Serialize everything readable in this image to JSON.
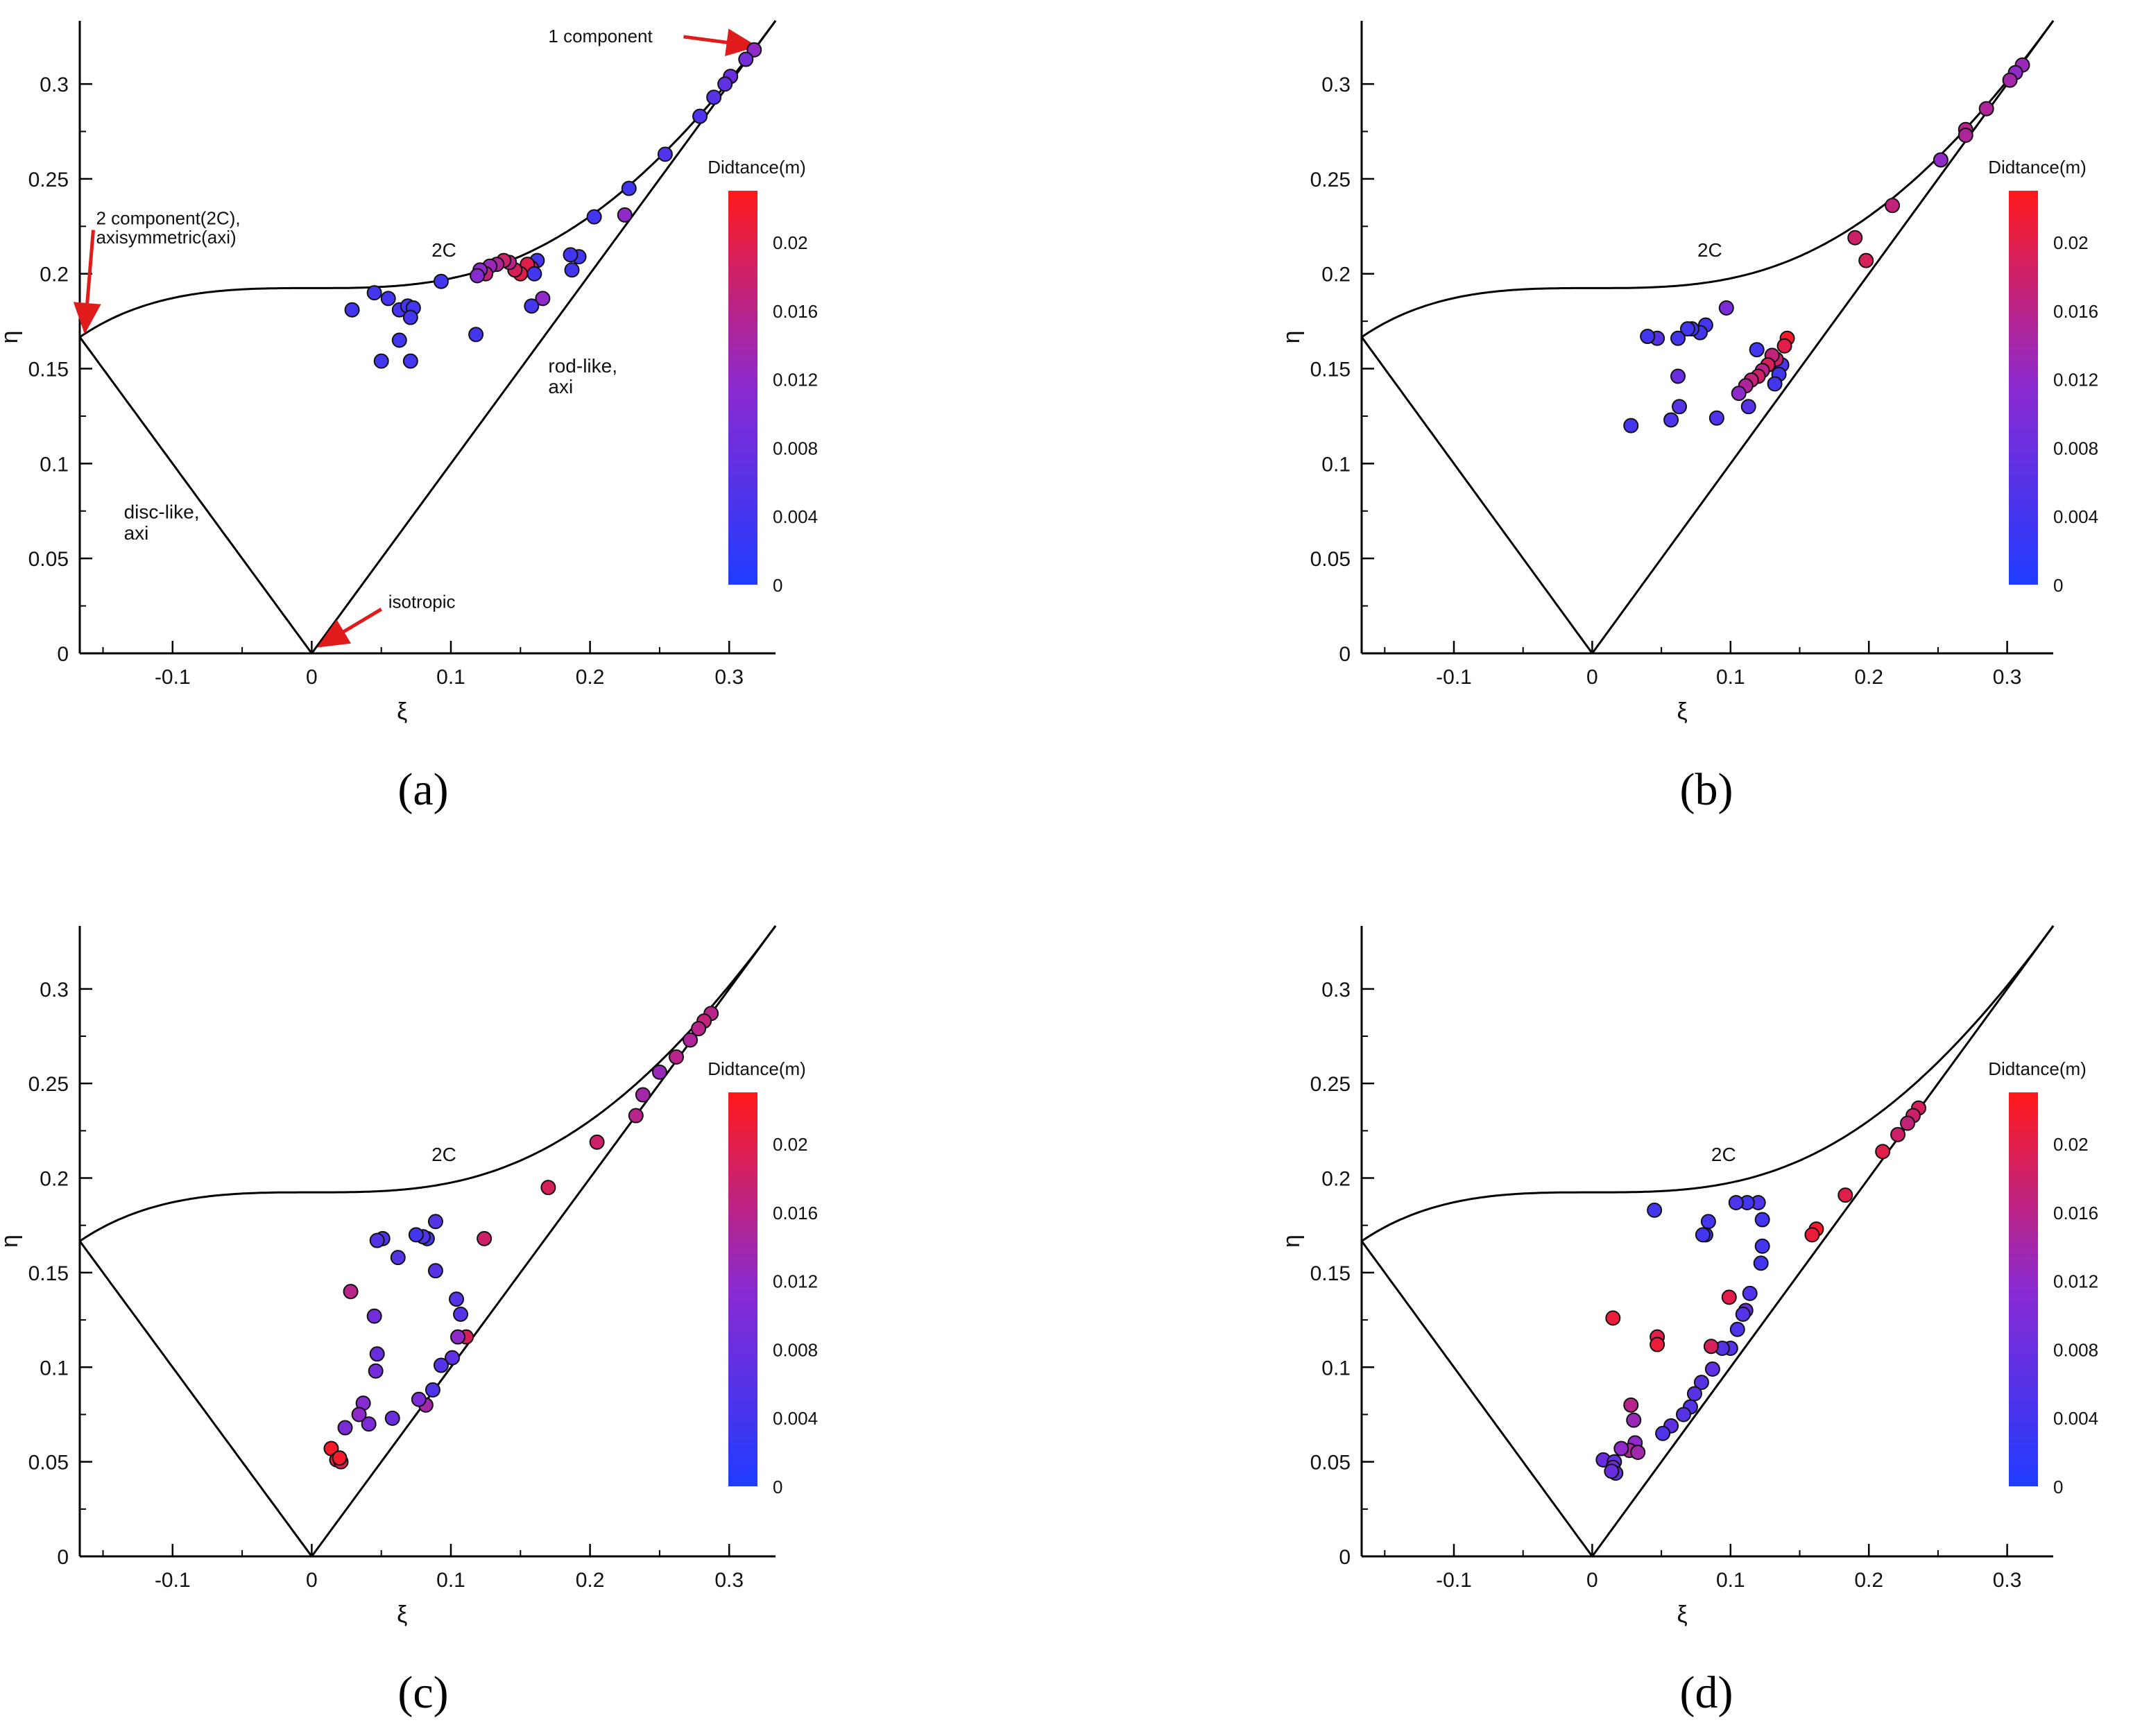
{
  "figure": {
    "colorbar": {
      "title": "Didtance(m)",
      "ticks": [
        0,
        0.004,
        0.008,
        0.012,
        0.016,
        0.02
      ],
      "tick_labels": [
        "0",
        "0.004",
        "0.008",
        "0.012",
        "0.016",
        "0.02"
      ],
      "min": 0,
      "max": 0.023,
      "color_low": "#1f3cff",
      "color_mid": "#8a2ad0",
      "color_high": "#ff1a1a"
    },
    "arrow_color": "#e01b1b",
    "panels": [
      {
        "id": "a",
        "label": "(a)"
      },
      {
        "id": "b",
        "label": "(b)"
      },
      {
        "id": "c",
        "label": "(c)"
      },
      {
        "id": "d",
        "label": "(d)"
      }
    ]
  },
  "chart_data": [
    {
      "type": "scatter",
      "panel": "(a)",
      "xlabel": "ξ",
      "ylabel": "η",
      "xlim": [
        -0.1667,
        0.3333
      ],
      "ylim": [
        0,
        0.3333
      ],
      "xticks": [
        -0.1,
        0,
        0.1,
        0.2,
        0.3
      ],
      "xtick_labels": [
        "-0.1",
        "0",
        "0.1",
        "0.2",
        "0.3"
      ],
      "yticks": [
        0,
        0.05,
        0.1,
        0.15,
        0.2,
        0.25,
        0.3
      ],
      "ytick_labels": [
        "0",
        "0.05",
        "0.1",
        "0.15",
        "0.2",
        "0.25",
        "0.3"
      ],
      "region_labels": [
        {
          "text": "2C",
          "x": 0.095,
          "y": 0.209
        },
        {
          "text": "rod-like,",
          "x": 0.17,
          "y": 0.148
        },
        {
          "text": "axi",
          "x": 0.17,
          "y": 0.137
        },
        {
          "text": "disc-like,",
          "x": -0.135,
          "y": 0.071
        },
        {
          "text": "axi",
          "x": -0.135,
          "y": 0.06
        }
      ],
      "annotations": [
        {
          "text": "1 component",
          "text_x": 0.17,
          "text_y": 0.322,
          "point_x": 0.318,
          "point_y": 0.32
        },
        {
          "text": "2 component(2C),",
          "text_x": -0.155,
          "text_y": 0.226,
          "point_x": -0.163,
          "point_y": 0.17
        },
        {
          "text": "axisymmetric(axi)",
          "text_x": -0.155,
          "text_y": 0.216,
          "point_x": null,
          "point_y": null
        },
        {
          "text": "isotropic",
          "text_x": 0.055,
          "text_y": 0.024,
          "point_x": 0.006,
          "point_y": 0.004
        }
      ],
      "points": [
        {
          "x": 0.318,
          "y": 0.318,
          "d": 0.012
        },
        {
          "x": 0.312,
          "y": 0.313,
          "d": 0.009
        },
        {
          "x": 0.301,
          "y": 0.304,
          "d": 0.008
        },
        {
          "x": 0.297,
          "y": 0.3,
          "d": 0.007
        },
        {
          "x": 0.289,
          "y": 0.293,
          "d": 0.006
        },
        {
          "x": 0.279,
          "y": 0.283,
          "d": 0.005
        },
        {
          "x": 0.254,
          "y": 0.263,
          "d": 0.005
        },
        {
          "x": 0.228,
          "y": 0.245,
          "d": 0.004
        },
        {
          "x": 0.225,
          "y": 0.231,
          "d": 0.012
        },
        {
          "x": 0.203,
          "y": 0.23,
          "d": 0.004
        },
        {
          "x": 0.192,
          "y": 0.209,
          "d": 0.004
        },
        {
          "x": 0.186,
          "y": 0.21,
          "d": 0.004
        },
        {
          "x": 0.187,
          "y": 0.202,
          "d": 0.004
        },
        {
          "x": 0.166,
          "y": 0.187,
          "d": 0.012
        },
        {
          "x": 0.162,
          "y": 0.207,
          "d": 0.004
        },
        {
          "x": 0.158,
          "y": 0.203,
          "d": 0.018
        },
        {
          "x": 0.155,
          "y": 0.205,
          "d": 0.02
        },
        {
          "x": 0.16,
          "y": 0.2,
          "d": 0.004
        },
        {
          "x": 0.15,
          "y": 0.2,
          "d": 0.02
        },
        {
          "x": 0.146,
          "y": 0.202,
          "d": 0.019
        },
        {
          "x": 0.142,
          "y": 0.206,
          "d": 0.016
        },
        {
          "x": 0.138,
          "y": 0.207,
          "d": 0.018
        },
        {
          "x": 0.133,
          "y": 0.205,
          "d": 0.015
        },
        {
          "x": 0.128,
          "y": 0.204,
          "d": 0.013
        },
        {
          "x": 0.125,
          "y": 0.2,
          "d": 0.017
        },
        {
          "x": 0.121,
          "y": 0.202,
          "d": 0.012
        },
        {
          "x": 0.119,
          "y": 0.199,
          "d": 0.011
        },
        {
          "x": 0.158,
          "y": 0.183,
          "d": 0.004
        },
        {
          "x": 0.118,
          "y": 0.168,
          "d": 0.004
        },
        {
          "x": 0.093,
          "y": 0.196,
          "d": 0.004
        },
        {
          "x": 0.029,
          "y": 0.181,
          "d": 0.004
        },
        {
          "x": 0.045,
          "y": 0.19,
          "d": 0.004
        },
        {
          "x": 0.055,
          "y": 0.187,
          "d": 0.004
        },
        {
          "x": 0.063,
          "y": 0.181,
          "d": 0.004
        },
        {
          "x": 0.069,
          "y": 0.183,
          "d": 0.004
        },
        {
          "x": 0.073,
          "y": 0.182,
          "d": 0.004
        },
        {
          "x": 0.071,
          "y": 0.177,
          "d": 0.004
        },
        {
          "x": 0.063,
          "y": 0.165,
          "d": 0.004
        },
        {
          "x": 0.05,
          "y": 0.154,
          "d": 0.004
        },
        {
          "x": 0.071,
          "y": 0.154,
          "d": 0.004
        }
      ]
    },
    {
      "type": "scatter",
      "panel": "(b)",
      "xlabel": "ξ",
      "ylabel": "η",
      "xlim": [
        -0.1667,
        0.3333
      ],
      "ylim": [
        0,
        0.3333
      ],
      "xticks": [
        -0.1,
        0,
        0.1,
        0.2,
        0.3
      ],
      "xtick_labels": [
        "-0.1",
        "0",
        "0.1",
        "0.2",
        "0.3"
      ],
      "yticks": [
        0,
        0.05,
        0.1,
        0.15,
        0.2,
        0.25,
        0.3
      ],
      "ytick_labels": [
        "0",
        "0.05",
        "0.1",
        "0.15",
        "0.2",
        "0.25",
        "0.3"
      ],
      "region_labels": [
        {
          "text": "2C",
          "x": 0.085,
          "y": 0.209
        }
      ],
      "annotations": [],
      "points": [
        {
          "x": 0.311,
          "y": 0.31,
          "d": 0.013
        },
        {
          "x": 0.306,
          "y": 0.306,
          "d": 0.012
        },
        {
          "x": 0.302,
          "y": 0.302,
          "d": 0.014
        },
        {
          "x": 0.285,
          "y": 0.287,
          "d": 0.015
        },
        {
          "x": 0.27,
          "y": 0.276,
          "d": 0.016
        },
        {
          "x": 0.27,
          "y": 0.273,
          "d": 0.015
        },
        {
          "x": 0.252,
          "y": 0.26,
          "d": 0.012
        },
        {
          "x": 0.217,
          "y": 0.236,
          "d": 0.017
        },
        {
          "x": 0.19,
          "y": 0.219,
          "d": 0.018
        },
        {
          "x": 0.198,
          "y": 0.207,
          "d": 0.019
        },
        {
          "x": 0.141,
          "y": 0.166,
          "d": 0.022
        },
        {
          "x": 0.139,
          "y": 0.162,
          "d": 0.02
        },
        {
          "x": 0.137,
          "y": 0.152,
          "d": 0.005
        },
        {
          "x": 0.135,
          "y": 0.147,
          "d": 0.004
        },
        {
          "x": 0.133,
          "y": 0.155,
          "d": 0.018
        },
        {
          "x": 0.13,
          "y": 0.157,
          "d": 0.017
        },
        {
          "x": 0.127,
          "y": 0.152,
          "d": 0.019
        },
        {
          "x": 0.123,
          "y": 0.149,
          "d": 0.016
        },
        {
          "x": 0.12,
          "y": 0.146,
          "d": 0.018
        },
        {
          "x": 0.115,
          "y": 0.144,
          "d": 0.017
        },
        {
          "x": 0.111,
          "y": 0.141,
          "d": 0.015
        },
        {
          "x": 0.106,
          "y": 0.137,
          "d": 0.012
        },
        {
          "x": 0.113,
          "y": 0.13,
          "d": 0.006
        },
        {
          "x": 0.119,
          "y": 0.16,
          "d": 0.004
        },
        {
          "x": 0.132,
          "y": 0.142,
          "d": 0.004
        },
        {
          "x": 0.09,
          "y": 0.124,
          "d": 0.005
        },
        {
          "x": 0.097,
          "y": 0.182,
          "d": 0.01
        },
        {
          "x": 0.082,
          "y": 0.173,
          "d": 0.004
        },
        {
          "x": 0.078,
          "y": 0.169,
          "d": 0.004
        },
        {
          "x": 0.072,
          "y": 0.171,
          "d": 0.004
        },
        {
          "x": 0.069,
          "y": 0.171,
          "d": 0.004
        },
        {
          "x": 0.062,
          "y": 0.166,
          "d": 0.004
        },
        {
          "x": 0.047,
          "y": 0.166,
          "d": 0.006
        },
        {
          "x": 0.04,
          "y": 0.167,
          "d": 0.004
        },
        {
          "x": 0.062,
          "y": 0.146,
          "d": 0.008
        },
        {
          "x": 0.063,
          "y": 0.13,
          "d": 0.006
        },
        {
          "x": 0.057,
          "y": 0.123,
          "d": 0.005
        },
        {
          "x": 0.028,
          "y": 0.12,
          "d": 0.004
        }
      ]
    },
    {
      "type": "scatter",
      "panel": "(c)",
      "xlabel": "ξ",
      "ylabel": "η",
      "xlim": [
        -0.1667,
        0.3333
      ],
      "ylim": [
        0,
        0.3333
      ],
      "xticks": [
        -0.1,
        0,
        0.1,
        0.2,
        0.3
      ],
      "xtick_labels": [
        "-0.1",
        "0",
        "0.1",
        "0.2",
        "0.3"
      ],
      "yticks": [
        0,
        0.05,
        0.1,
        0.15,
        0.2,
        0.25,
        0.3
      ],
      "ytick_labels": [
        "0",
        "0.05",
        "0.1",
        "0.15",
        "0.2",
        "0.25",
        "0.3"
      ],
      "region_labels": [
        {
          "text": "2C",
          "x": 0.095,
          "y": 0.209
        }
      ],
      "annotations": [],
      "points": [
        {
          "x": 0.287,
          "y": 0.287,
          "d": 0.016
        },
        {
          "x": 0.282,
          "y": 0.283,
          "d": 0.017
        },
        {
          "x": 0.278,
          "y": 0.279,
          "d": 0.016
        },
        {
          "x": 0.272,
          "y": 0.273,
          "d": 0.015
        },
        {
          "x": 0.262,
          "y": 0.264,
          "d": 0.016
        },
        {
          "x": 0.25,
          "y": 0.256,
          "d": 0.013
        },
        {
          "x": 0.238,
          "y": 0.244,
          "d": 0.014
        },
        {
          "x": 0.233,
          "y": 0.233,
          "d": 0.016
        },
        {
          "x": 0.205,
          "y": 0.219,
          "d": 0.018
        },
        {
          "x": 0.17,
          "y": 0.195,
          "d": 0.019
        },
        {
          "x": 0.124,
          "y": 0.168,
          "d": 0.018
        },
        {
          "x": 0.111,
          "y": 0.116,
          "d": 0.019
        },
        {
          "x": 0.105,
          "y": 0.116,
          "d": 0.012
        },
        {
          "x": 0.104,
          "y": 0.136,
          "d": 0.006
        },
        {
          "x": 0.107,
          "y": 0.128,
          "d": 0.006
        },
        {
          "x": 0.101,
          "y": 0.105,
          "d": 0.007
        },
        {
          "x": 0.093,
          "y": 0.101,
          "d": 0.006
        },
        {
          "x": 0.087,
          "y": 0.088,
          "d": 0.005
        },
        {
          "x": 0.082,
          "y": 0.08,
          "d": 0.014
        },
        {
          "x": 0.077,
          "y": 0.083,
          "d": 0.01
        },
        {
          "x": 0.089,
          "y": 0.177,
          "d": 0.006
        },
        {
          "x": 0.089,
          "y": 0.151,
          "d": 0.006
        },
        {
          "x": 0.083,
          "y": 0.168,
          "d": 0.004
        },
        {
          "x": 0.08,
          "y": 0.169,
          "d": 0.005
        },
        {
          "x": 0.075,
          "y": 0.17,
          "d": 0.004
        },
        {
          "x": 0.062,
          "y": 0.158,
          "d": 0.006
        },
        {
          "x": 0.051,
          "y": 0.168,
          "d": 0.005
        },
        {
          "x": 0.047,
          "y": 0.167,
          "d": 0.006
        },
        {
          "x": 0.045,
          "y": 0.127,
          "d": 0.009
        },
        {
          "x": 0.047,
          "y": 0.107,
          "d": 0.008
        },
        {
          "x": 0.046,
          "y": 0.098,
          "d": 0.009
        },
        {
          "x": 0.028,
          "y": 0.14,
          "d": 0.016
        },
        {
          "x": 0.037,
          "y": 0.081,
          "d": 0.011
        },
        {
          "x": 0.041,
          "y": 0.07,
          "d": 0.01
        },
        {
          "x": 0.034,
          "y": 0.075,
          "d": 0.012
        },
        {
          "x": 0.058,
          "y": 0.073,
          "d": 0.008
        },
        {
          "x": 0.024,
          "y": 0.068,
          "d": 0.01
        },
        {
          "x": 0.014,
          "y": 0.057,
          "d": 0.022
        },
        {
          "x": 0.018,
          "y": 0.051,
          "d": 0.021
        },
        {
          "x": 0.021,
          "y": 0.05,
          "d": 0.02
        },
        {
          "x": 0.02,
          "y": 0.052,
          "d": 0.022
        }
      ]
    },
    {
      "type": "scatter",
      "panel": "(d)",
      "xlabel": "ξ",
      "ylabel": "η",
      "xlim": [
        -0.1667,
        0.3333
      ],
      "ylim": [
        0,
        0.3333
      ],
      "xticks": [
        -0.1,
        0,
        0.1,
        0.2,
        0.3
      ],
      "xtick_labels": [
        "-0.1",
        "0",
        "0.1",
        "0.2",
        "0.3"
      ],
      "yticks": [
        0,
        0.05,
        0.1,
        0.15,
        0.2,
        0.25,
        0.3
      ],
      "ytick_labels": [
        "0",
        "0.05",
        "0.1",
        "0.15",
        "0.2",
        "0.25",
        "0.3"
      ],
      "region_labels": [
        {
          "text": "2C",
          "x": 0.095,
          "y": 0.209
        }
      ],
      "annotations": [],
      "points": [
        {
          "x": 0.236,
          "y": 0.237,
          "d": 0.019
        },
        {
          "x": 0.232,
          "y": 0.233,
          "d": 0.018
        },
        {
          "x": 0.228,
          "y": 0.229,
          "d": 0.017
        },
        {
          "x": 0.221,
          "y": 0.223,
          "d": 0.018
        },
        {
          "x": 0.21,
          "y": 0.214,
          "d": 0.02
        },
        {
          "x": 0.183,
          "y": 0.191,
          "d": 0.02
        },
        {
          "x": 0.162,
          "y": 0.173,
          "d": 0.022
        },
        {
          "x": 0.159,
          "y": 0.17,
          "d": 0.021
        },
        {
          "x": 0.123,
          "y": 0.178,
          "d": 0.004
        },
        {
          "x": 0.123,
          "y": 0.164,
          "d": 0.004
        },
        {
          "x": 0.122,
          "y": 0.155,
          "d": 0.004
        },
        {
          "x": 0.114,
          "y": 0.139,
          "d": 0.005
        },
        {
          "x": 0.111,
          "y": 0.13,
          "d": 0.008
        },
        {
          "x": 0.109,
          "y": 0.128,
          "d": 0.006
        },
        {
          "x": 0.105,
          "y": 0.12,
          "d": 0.005
        },
        {
          "x": 0.099,
          "y": 0.137,
          "d": 0.02
        },
        {
          "x": 0.1,
          "y": 0.11,
          "d": 0.006
        },
        {
          "x": 0.094,
          "y": 0.11,
          "d": 0.006
        },
        {
          "x": 0.087,
          "y": 0.099,
          "d": 0.007
        },
        {
          "x": 0.079,
          "y": 0.092,
          "d": 0.006
        },
        {
          "x": 0.074,
          "y": 0.086,
          "d": 0.006
        },
        {
          "x": 0.071,
          "y": 0.079,
          "d": 0.006
        },
        {
          "x": 0.066,
          "y": 0.075,
          "d": 0.006
        },
        {
          "x": 0.057,
          "y": 0.069,
          "d": 0.007
        },
        {
          "x": 0.051,
          "y": 0.065,
          "d": 0.005
        },
        {
          "x": 0.12,
          "y": 0.187,
          "d": 0.005
        },
        {
          "x": 0.112,
          "y": 0.187,
          "d": 0.004
        },
        {
          "x": 0.104,
          "y": 0.187,
          "d": 0.005
        },
        {
          "x": 0.084,
          "y": 0.177,
          "d": 0.004
        },
        {
          "x": 0.082,
          "y": 0.17,
          "d": 0.004
        },
        {
          "x": 0.08,
          "y": 0.17,
          "d": 0.004
        },
        {
          "x": 0.045,
          "y": 0.183,
          "d": 0.004
        },
        {
          "x": 0.086,
          "y": 0.111,
          "d": 0.019
        },
        {
          "x": 0.047,
          "y": 0.116,
          "d": 0.02
        },
        {
          "x": 0.047,
          "y": 0.112,
          "d": 0.021
        },
        {
          "x": 0.015,
          "y": 0.126,
          "d": 0.021
        },
        {
          "x": 0.028,
          "y": 0.08,
          "d": 0.016
        },
        {
          "x": 0.03,
          "y": 0.072,
          "d": 0.013
        },
        {
          "x": 0.031,
          "y": 0.06,
          "d": 0.012
        },
        {
          "x": 0.027,
          "y": 0.056,
          "d": 0.015
        },
        {
          "x": 0.033,
          "y": 0.055,
          "d": 0.014
        },
        {
          "x": 0.021,
          "y": 0.057,
          "d": 0.012
        },
        {
          "x": 0.008,
          "y": 0.051,
          "d": 0.008
        },
        {
          "x": 0.016,
          "y": 0.05,
          "d": 0.007
        },
        {
          "x": 0.015,
          "y": 0.047,
          "d": 0.009
        },
        {
          "x": 0.017,
          "y": 0.044,
          "d": 0.007
        },
        {
          "x": 0.014,
          "y": 0.045,
          "d": 0.008
        }
      ]
    }
  ]
}
